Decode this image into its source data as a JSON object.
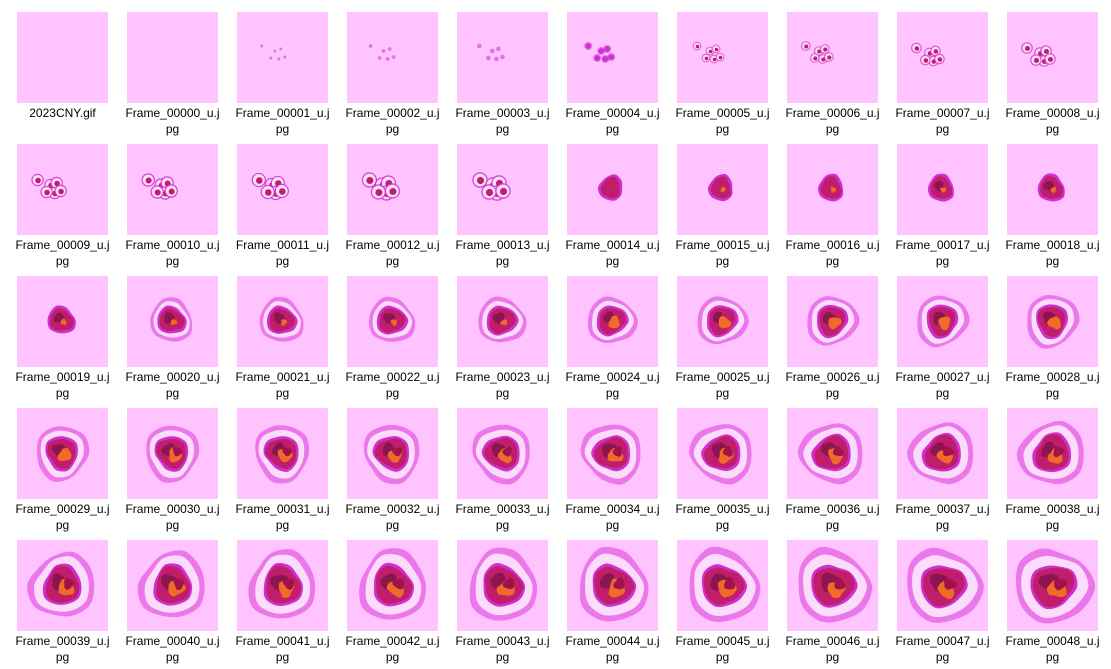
{
  "window": {
    "background": "#ffffff",
    "thumb_background": "#ffc4ff"
  },
  "colors": {
    "halo_outer": "#e86ae8",
    "halo_light": "#fbdcfb",
    "ring": "#cf2fd0",
    "body": "#c01e6a",
    "dark": "#8a1550",
    "orange": "#f06a28",
    "deep": "#a0124a"
  },
  "files": [
    {
      "line1": "2023CNY.gif",
      "line2": "",
      "stage": 0
    },
    {
      "line1": "Frame_00000_u.j",
      "line2": "pg",
      "stage": 0
    },
    {
      "line1": "Frame_00001_u.j",
      "line2": "pg",
      "stage": 1
    },
    {
      "line1": "Frame_00002_u.j",
      "line2": "pg",
      "stage": 2
    },
    {
      "line1": "Frame_00003_u.j",
      "line2": "pg",
      "stage": 3
    },
    {
      "line1": "Frame_00004_u.j",
      "line2": "pg",
      "stage": 4
    },
    {
      "line1": "Frame_00005_u.j",
      "line2": "pg",
      "stage": 5
    },
    {
      "line1": "Frame_00006_u.j",
      "line2": "pg",
      "stage": 6
    },
    {
      "line1": "Frame_00007_u.j",
      "line2": "pg",
      "stage": 7
    },
    {
      "line1": "Frame_00008_u.j",
      "line2": "pg",
      "stage": 8
    },
    {
      "line1": "Frame_00009_u.j",
      "line2": "pg",
      "stage": 9
    },
    {
      "line1": "Frame_00010_u.j",
      "line2": "pg",
      "stage": 10
    },
    {
      "line1": "Frame_00011_u.j",
      "line2": "pg",
      "stage": 11
    },
    {
      "line1": "Frame_00012_u.j",
      "line2": "pg",
      "stage": 12
    },
    {
      "line1": "Frame_00013_u.j",
      "line2": "pg",
      "stage": 13
    },
    {
      "line1": "Frame_00014_u.j",
      "line2": "pg",
      "stage": 14
    },
    {
      "line1": "Frame_00015_u.j",
      "line2": "pg",
      "stage": 15
    },
    {
      "line1": "Frame_00016_u.j",
      "line2": "pg",
      "stage": 16
    },
    {
      "line1": "Frame_00017_u.j",
      "line2": "pg",
      "stage": 17
    },
    {
      "line1": "Frame_00018_u.j",
      "line2": "pg",
      "stage": 18
    },
    {
      "line1": "Frame_00019_u.j",
      "line2": "pg",
      "stage": 19
    },
    {
      "line1": "Frame_00020_u.j",
      "line2": "pg",
      "stage": 20
    },
    {
      "line1": "Frame_00021_u.j",
      "line2": "pg",
      "stage": 21
    },
    {
      "line1": "Frame_00022_u.j",
      "line2": "pg",
      "stage": 22
    },
    {
      "line1": "Frame_00023_u.j",
      "line2": "pg",
      "stage": 23
    },
    {
      "line1": "Frame_00024_u.j",
      "line2": "pg",
      "stage": 24
    },
    {
      "line1": "Frame_00025_u.j",
      "line2": "pg",
      "stage": 25
    },
    {
      "line1": "Frame_00026_u.j",
      "line2": "pg",
      "stage": 26
    },
    {
      "line1": "Frame_00027_u.j",
      "line2": "pg",
      "stage": 27
    },
    {
      "line1": "Frame_00028_u.j",
      "line2": "pg",
      "stage": 28
    },
    {
      "line1": "Frame_00029_u.j",
      "line2": "pg",
      "stage": 29
    },
    {
      "line1": "Frame_00030_u.j",
      "line2": "pg",
      "stage": 30
    },
    {
      "line1": "Frame_00031_u.j",
      "line2": "pg",
      "stage": 31
    },
    {
      "line1": "Frame_00032_u.j",
      "line2": "pg",
      "stage": 32
    },
    {
      "line1": "Frame_00033_u.j",
      "line2": "pg",
      "stage": 33
    },
    {
      "line1": "Frame_00034_u.j",
      "line2": "pg",
      "stage": 34
    },
    {
      "line1": "Frame_00035_u.j",
      "line2": "pg",
      "stage": 35
    },
    {
      "line1": "Frame_00036_u.j",
      "line2": "pg",
      "stage": 36
    },
    {
      "line1": "Frame_00037_u.j",
      "line2": "pg",
      "stage": 37
    },
    {
      "line1": "Frame_00038_u.j",
      "line2": "pg",
      "stage": 38
    },
    {
      "line1": "Frame_00039_u.j",
      "line2": "pg",
      "stage": 39
    },
    {
      "line1": "Frame_00040_u.j",
      "line2": "pg",
      "stage": 40
    },
    {
      "line1": "Frame_00041_u.j",
      "line2": "pg",
      "stage": 41
    },
    {
      "line1": "Frame_00042_u.j",
      "line2": "pg",
      "stage": 42
    },
    {
      "line1": "Frame_00043_u.j",
      "line2": "pg",
      "stage": 43
    },
    {
      "line1": "Frame_00044_u.j",
      "line2": "pg",
      "stage": 44
    },
    {
      "line1": "Frame_00045_u.j",
      "line2": "pg",
      "stage": 45
    },
    {
      "line1": "Frame_00046_u.j",
      "line2": "pg",
      "stage": 46
    },
    {
      "line1": "Frame_00047_u.j",
      "line2": "pg",
      "stage": 47
    },
    {
      "line1": "Frame_00048_u.j",
      "line2": "pg",
      "stage": 48
    }
  ]
}
